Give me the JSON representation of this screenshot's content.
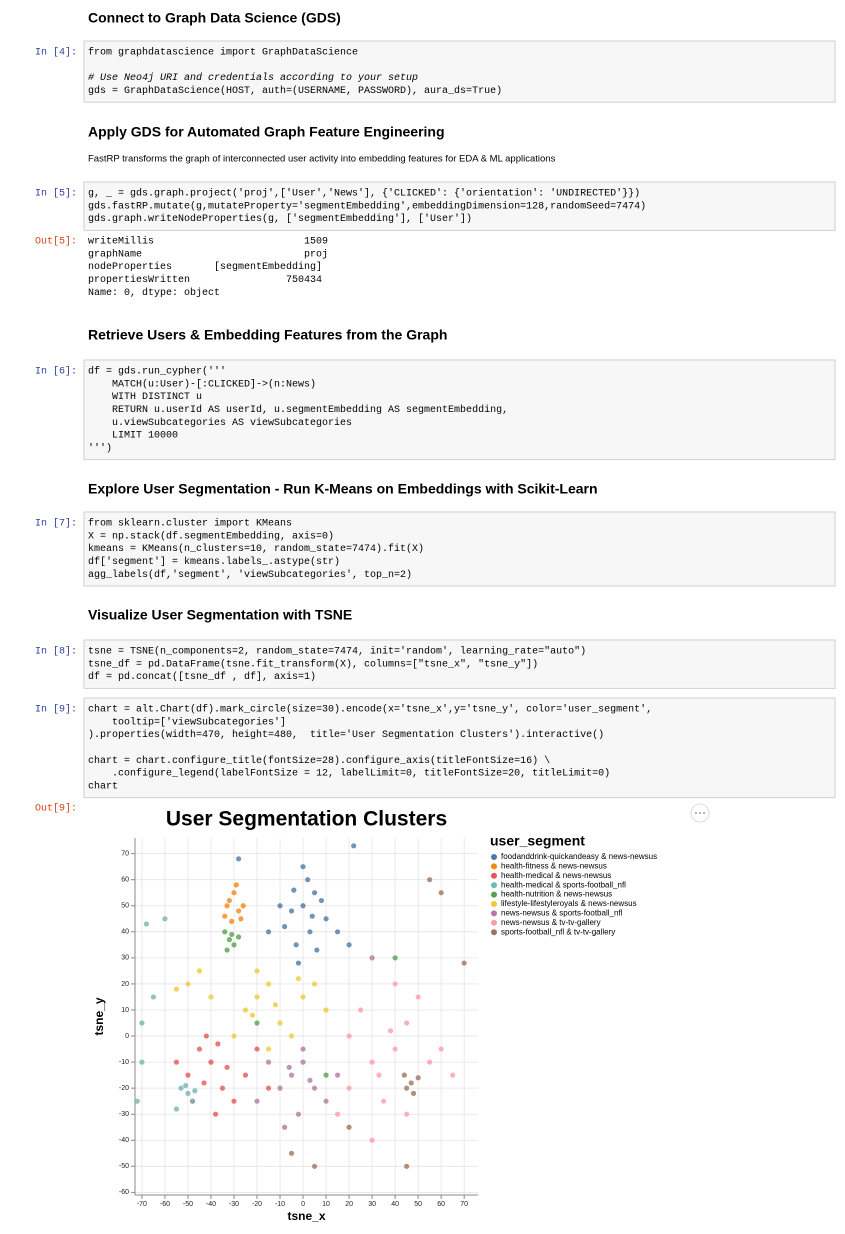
{
  "cells": [
    {
      "heading": "Connect to Graph Data Science (GDS)"
    },
    {
      "prompt": "In [4]:",
      "code": [
        "from graphdatascience import GraphDataScience",
        null,
        "# Use Neo4j URI and credentials according to your setup",
        "gds = GraphDataScience(HOST, auth=(USERNAME, PASSWORD), aura_ds=True)"
      ]
    },
    {
      "heading": "Apply GDS for Automated Graph Feature Engineering"
    },
    {
      "text": "FastRP transforms the graph of interconnected user activity into embedding features for EDA & ML applications"
    },
    {
      "prompt": "In [5]:",
      "code": [
        "g, _ = gds.graph.project('proj',['User','News'], {'CLICKED': {'orientation': 'UNDIRECTED'}})",
        "gds.fastRP.mutate(g,mutateProperty='segmentEmbedding',embeddingDimension=128,randomSeed=7474)",
        "gds.graph.writeNodeProperties(g, ['segmentEmbedding'], ['User'])"
      ]
    },
    {
      "prompt": "Out[5]:",
      "output": [
        "writeMillis                         1509",
        "graphName                           proj",
        "nodeProperties       [segmentEmbedding]",
        "propertiesWritten                750434",
        "Name: 0, dtype: object"
      ]
    },
    {
      "heading": "Retrieve Users & Embedding Features from the Graph"
    },
    {
      "prompt": "In [6]:",
      "code": [
        "df = gds.run_cypher('''",
        "    MATCH(u:User)-[:CLICKED]->(n:News)",
        "    WITH DISTINCT u",
        "    RETURN u.userId AS userId, u.segmentEmbedding AS segmentEmbedding,",
        "    u.viewSubcategories AS viewSubcategories",
        "    LIMIT 10000",
        "''')"
      ]
    },
    {
      "heading": "Explore User Segmentation - Run K-Means on Embeddings with Scikit-Learn"
    },
    {
      "prompt": "In [7]:",
      "code": [
        "from sklearn.cluster import KMeans",
        "X = np.stack(df.segmentEmbedding, axis=0)",
        "kmeans = KMeans(n_clusters=10, random_state=7474).fit(X)",
        "df['segment'] = kmeans.labels_.astype(str)",
        "agg_labels(df,'segment', 'viewSubcategories', top_n=2)"
      ]
    },
    {
      "heading": "Visualize User Segmentation with TSNE"
    },
    {
      "prompt": "In [8]:",
      "code": [
        "tsne = TSNE(n_components=2, random_state=7474, init='random', learning_rate=\"auto\")",
        "tsne_df = pd.DataFrame(tsne.fit_transform(X), columns=[\"tsne_x\", \"tsne_y\"])",
        "df = pd.concat([tsne_df , df], axis=1)"
      ]
    },
    {
      "prompt": "In [9]:",
      "code": [
        "chart = alt.Chart(df).mark_circle(size=30).encode(x='tsne_x',y='tsne_y', color='user_segment',",
        "    tooltip=['viewSubcategories']",
        ").properties(width=470, height=480,  title='User Segmentation Clusters').interactive()",
        null,
        "chart = chart.configure_title(fontSize=28).configure_axis(titleFontSize=16) \\",
        "    .configure_legend(labelFontSize = 12, labelLimit=0, titleFontSize=20, titleLimit=0)",
        "chart"
      ]
    }
  ],
  "chart_prompt": "Out[9]:",
  "chart_data": {
    "type": "scatter",
    "title": "User Segmentation Clusters",
    "x_label": "tsne_x",
    "y_label": "tsne_y",
    "legend_title": "user_segment",
    "grid": true,
    "legend": "right",
    "xlim": [
      -73,
      76
    ],
    "ylim": [
      -61,
      76
    ],
    "xticks": [
      -70,
      -60,
      -50,
      -40,
      -30,
      -20,
      -10,
      0,
      10,
      20,
      30,
      40,
      50,
      60,
      70
    ],
    "yticks": [
      -60,
      -50,
      -40,
      -30,
      -20,
      -10,
      0,
      10,
      20,
      30,
      40,
      50,
      60,
      70
    ],
    "series": [
      {
        "name": "foodanddrink-quickandeasy & news-newsus",
        "color": "#4c78a8",
        "x": [
          0,
          5,
          -5,
          3,
          -8,
          10,
          2,
          -3,
          6,
          -10,
          0,
          8,
          -2,
          15,
          -15,
          20,
          -4,
          4,
          -28,
          22
        ],
        "y": [
          50,
          55,
          48,
          40,
          42,
          45,
          60,
          35,
          33,
          50,
          65,
          52,
          28,
          40,
          40,
          35,
          56,
          46,
          68,
          73
        ]
      },
      {
        "name": "health-fitness & news-newsus",
        "color": "#f58518",
        "x": [
          -32,
          -28,
          -34,
          -30,
          -26,
          -31,
          -29,
          -33,
          -27
        ],
        "y": [
          52,
          48,
          46,
          55,
          50,
          44,
          58,
          50,
          45
        ]
      },
      {
        "name": "health-medical & news-newsus",
        "color": "#e45756",
        "x": [
          -45,
          -40,
          -50,
          -35,
          -30,
          -42,
          -38,
          -25,
          -20,
          -48,
          -33,
          -55,
          -15,
          -43,
          -37
        ],
        "y": [
          -5,
          -10,
          -15,
          -20,
          -25,
          0,
          -30,
          -15,
          -5,
          -25,
          -12,
          -10,
          -20,
          -18,
          -3
        ]
      },
      {
        "name": "health-medical & sports-football_nfl",
        "color": "#72b7b2",
        "x": [
          -50,
          -53,
          -48,
          -55,
          -70,
          -72,
          -68,
          -60,
          -65,
          -51,
          -70,
          -47
        ],
        "y": [
          -22,
          -20,
          -25,
          -28,
          -10,
          -25,
          43,
          45,
          15,
          -19,
          5,
          -21
        ]
      },
      {
        "name": "health-nutrition & news-newsus",
        "color": "#54a24b",
        "x": [
          -32,
          -30,
          -34,
          -28,
          -33,
          -20,
          10,
          40,
          -31
        ],
        "y": [
          37,
          35,
          40,
          38,
          33,
          5,
          -15,
          30,
          39
        ]
      },
      {
        "name": "lifestyle-lifestyleroyals & news-newsus",
        "color": "#eeca3b",
        "x": [
          -50,
          -45,
          -55,
          -20,
          -25,
          -15,
          -10,
          0,
          5,
          -30,
          -20,
          10,
          -5,
          -40,
          -15,
          -22,
          -12,
          -2
        ],
        "y": [
          20,
          25,
          18,
          15,
          10,
          20,
          5,
          15,
          20,
          0,
          25,
          10,
          0,
          15,
          -5,
          8,
          12,
          22
        ]
      },
      {
        "name": "news-newsus & sports-football_nfl",
        "color": "#b279a2",
        "x": [
          -5,
          0,
          -10,
          5,
          -15,
          10,
          -2,
          -20,
          15,
          0,
          30,
          -8,
          -6,
          3
        ],
        "y": [
          -15,
          -10,
          -20,
          -20,
          -10,
          -25,
          -30,
          -25,
          -15,
          -5,
          30,
          -35,
          -12,
          -17
        ]
      },
      {
        "name": "news-newsus & tv-tv-gallery",
        "color": "#ff9da6",
        "x": [
          30,
          40,
          45,
          50,
          35,
          20,
          55,
          25,
          40,
          60,
          30,
          15,
          45,
          65,
          20,
          38,
          33
        ],
        "y": [
          -10,
          -5,
          5,
          15,
          -25,
          -20,
          -10,
          10,
          20,
          -5,
          -40,
          -30,
          -30,
          -15,
          0,
          2,
          -15
        ]
      },
      {
        "name": "sports-football_nfl & tv-tv-gallery",
        "color": "#9d755d",
        "x": [
          47,
          45,
          50,
          48,
          44,
          55,
          60,
          20,
          70,
          5,
          45,
          -5
        ],
        "y": [
          -18,
          -20,
          -16,
          -22,
          -15,
          60,
          55,
          -35,
          28,
          -50,
          -50,
          -45
        ]
      }
    ]
  }
}
